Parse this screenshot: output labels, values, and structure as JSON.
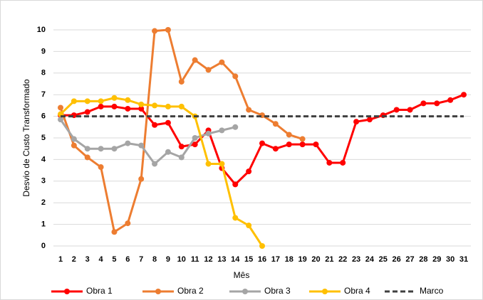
{
  "chart_data": {
    "type": "line",
    "x_label": "Mês",
    "y_label": "Desvio de Custo Transformado",
    "x": [
      1,
      2,
      3,
      4,
      5,
      6,
      7,
      8,
      9,
      10,
      11,
      12,
      13,
      14,
      15,
      16,
      17,
      18,
      19,
      20,
      21,
      22,
      23,
      24,
      25,
      26,
      27,
      28,
      29,
      30,
      31
    ],
    "xlim": [
      1,
      31
    ],
    "ylim": [
      0,
      10
    ],
    "yticks": [
      0,
      1,
      2,
      3,
      4,
      5,
      6,
      7,
      8,
      9,
      10
    ],
    "grid": true,
    "legend": "bottom",
    "series": [
      {
        "name": "Obra 1",
        "color": "#ff0000",
        "values": [
          6.05,
          6.05,
          6.2,
          6.45,
          6.45,
          6.35,
          6.35,
          5.6,
          5.7,
          4.6,
          4.7,
          5.35,
          3.6,
          2.85,
          3.45,
          4.75,
          4.5,
          4.7,
          4.7,
          4.7,
          3.85,
          3.85,
          5.75,
          5.85,
          6.05,
          6.3,
          6.3,
          6.6,
          6.6,
          6.75,
          7.0
        ]
      },
      {
        "name": "Obra 2",
        "color": "#ed7d31",
        "values": [
          6.4,
          4.65,
          4.1,
          3.65,
          0.65,
          1.05,
          3.1,
          9.95,
          10.0,
          7.6,
          8.6,
          8.15,
          8.5,
          7.85,
          6.3,
          6.05,
          5.65,
          5.15,
          4.95,
          null,
          null,
          null,
          null,
          null,
          null,
          null,
          null,
          null,
          null,
          null,
          null
        ]
      },
      {
        "name": "Obra 3",
        "color": "#a5a5a5",
        "values": [
          5.85,
          4.95,
          4.5,
          4.5,
          4.5,
          4.75,
          4.65,
          3.8,
          4.35,
          4.1,
          5.0,
          5.2,
          5.35,
          5.5,
          null,
          null,
          null,
          null,
          null,
          null,
          null,
          null,
          null,
          null,
          null,
          null,
          null,
          null,
          null,
          null,
          null
        ]
      },
      {
        "name": "Obra 4",
        "color": "#ffc000",
        "values": [
          6.1,
          6.7,
          6.7,
          6.7,
          6.85,
          6.75,
          6.55,
          6.5,
          6.45,
          6.45,
          6.0,
          3.8,
          3.8,
          1.3,
          0.95,
          0.0,
          null,
          null,
          null,
          null,
          null,
          null,
          null,
          null,
          null,
          null,
          null,
          null,
          null,
          null,
          null
        ]
      },
      {
        "name": "Marco",
        "color": "#404040",
        "line_style": "dashed",
        "values": [
          6,
          6,
          6,
          6,
          6,
          6,
          6,
          6,
          6,
          6,
          6,
          6,
          6,
          6,
          6,
          6,
          6,
          6,
          6,
          6,
          6,
          6,
          6,
          6,
          6,
          6,
          6,
          6,
          6,
          6,
          6
        ]
      }
    ]
  }
}
